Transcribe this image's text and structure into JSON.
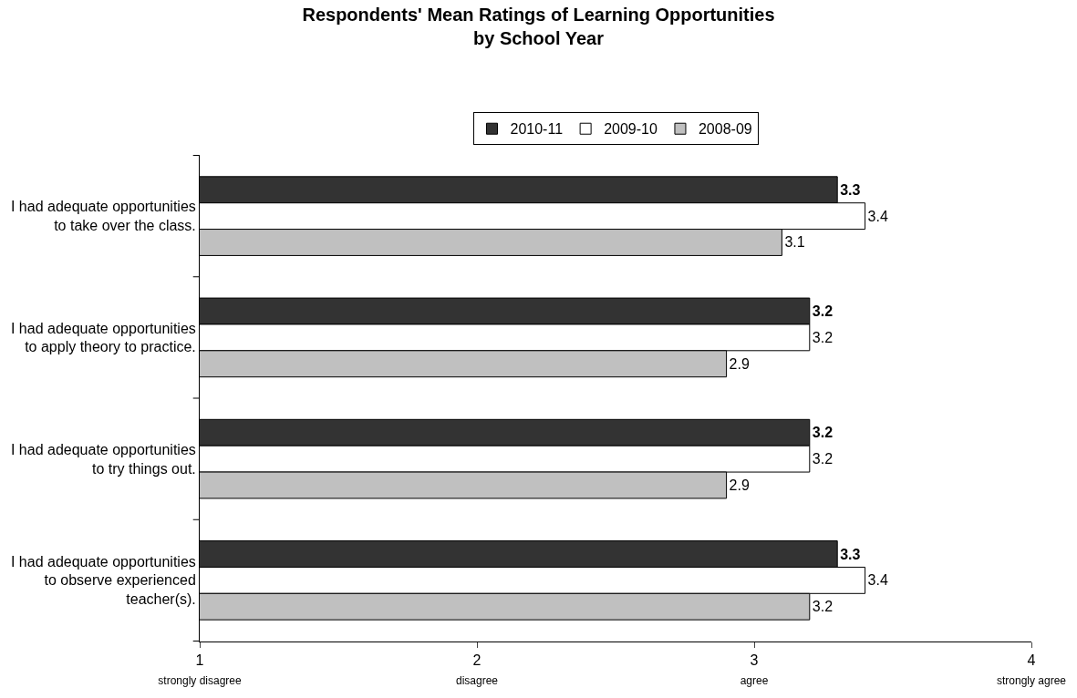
{
  "chart_data": {
    "type": "bar",
    "orientation": "horizontal",
    "title": "Respondents' Mean Ratings of Learning Opportunities\nby School Year",
    "categories": [
      "I had adequate opportunities to take over the class.",
      "I had adequate opportunities to apply theory to practice.",
      "I had adequate opportunities to try things out.",
      "I had adequate opportunities to observe experienced teacher(s)."
    ],
    "series": [
      {
        "name": "2010-11",
        "color": "#333333",
        "values": [
          3.3,
          3.2,
          3.2,
          3.3
        ]
      },
      {
        "name": "2009-10",
        "color": "#ffffff",
        "values": [
          3.4,
          3.2,
          3.2,
          3.4
        ]
      },
      {
        "name": "2008-09",
        "color": "#c0c0c0",
        "values": [
          3.1,
          2.9,
          2.9,
          3.2
        ]
      }
    ],
    "xlim": [
      1,
      4
    ],
    "xticks": [
      {
        "value": 1,
        "label": "1\nstrongly disagree"
      },
      {
        "value": 2,
        "label": "2\ndisagree"
      },
      {
        "value": 3,
        "label": "3\nagree"
      },
      {
        "value": 4,
        "label": "4\nstrongly agree"
      }
    ],
    "data_labels": true,
    "legend": "top"
  }
}
